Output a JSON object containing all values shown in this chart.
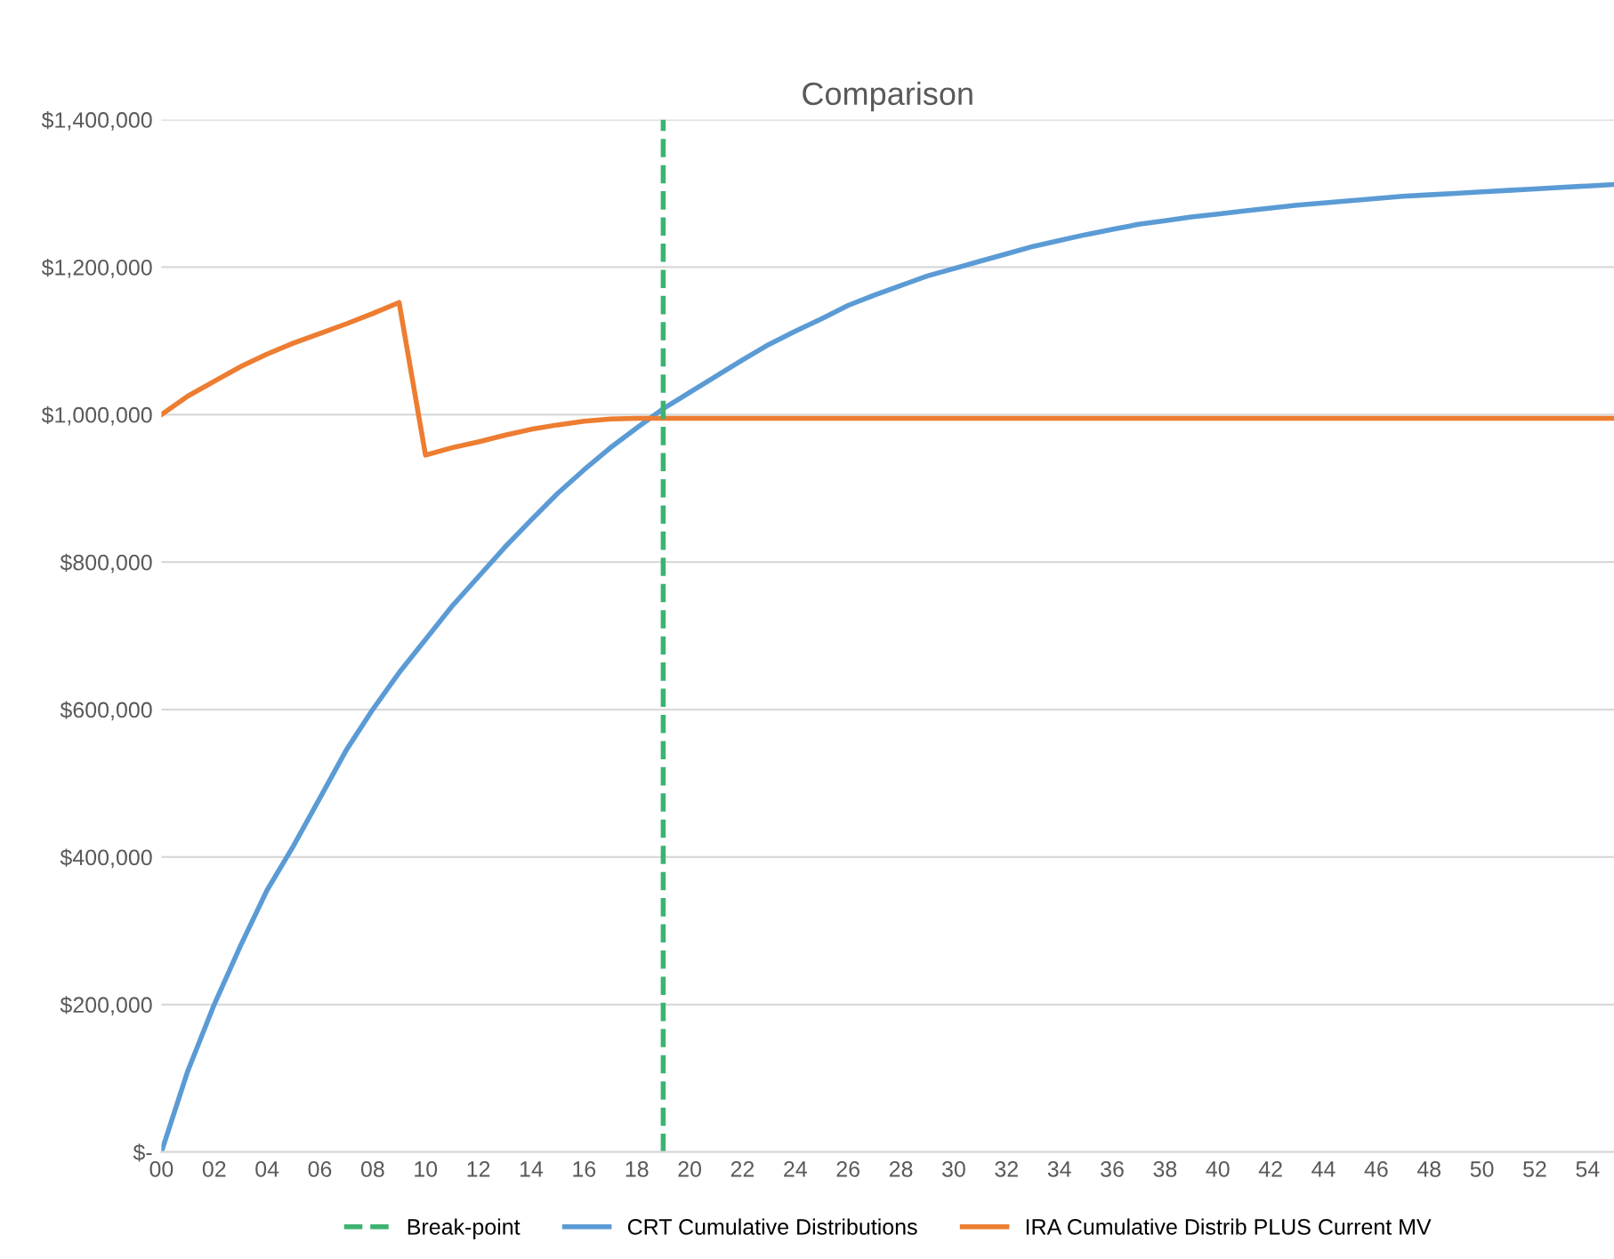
{
  "chart_data": {
    "type": "line",
    "title": "Comparison",
    "x": [
      0,
      1,
      2,
      3,
      4,
      5,
      6,
      7,
      8,
      9,
      10,
      11,
      12,
      13,
      14,
      15,
      16,
      17,
      18,
      19,
      20,
      21,
      22,
      23,
      24,
      25,
      26,
      27,
      28,
      29,
      30,
      31,
      32,
      33,
      34,
      35,
      36,
      37,
      38,
      39,
      40,
      41,
      42,
      43,
      44,
      45,
      46,
      47,
      48,
      49,
      50,
      51,
      52,
      53,
      54,
      55
    ],
    "xlim": [
      0,
      55
    ],
    "xticks": [
      {
        "value": 0,
        "label": "00"
      },
      {
        "value": 2,
        "label": "02"
      },
      {
        "value": 4,
        "label": "04"
      },
      {
        "value": 6,
        "label": "06"
      },
      {
        "value": 8,
        "label": "08"
      },
      10,
      12,
      14,
      16,
      18,
      20,
      22,
      24,
      26,
      28,
      30,
      32,
      34,
      36,
      38,
      40,
      42,
      44,
      46,
      48,
      50,
      52,
      54
    ],
    "series": [
      {
        "name": "CRT Cumulative Distributions",
        "color": "#5b9bd5",
        "values": [
          0,
          110000,
          200000,
          280000,
          355000,
          415000,
          480000,
          545000,
          600000,
          650000,
          695000,
          740000,
          780000,
          820000,
          857000,
          893000,
          925000,
          955000,
          982000,
          1008000,
          1030000,
          1052000,
          1074000,
          1095000,
          1113000,
          1130000,
          1148000,
          1162000,
          1175000,
          1188000,
          1198000,
          1208000,
          1218000,
          1228000,
          1236000,
          1244000,
          1251000,
          1258000,
          1263000,
          1268000,
          1272000,
          1276000,
          1280000,
          1284000,
          1287000,
          1290000,
          1293000,
          1296000,
          1298000,
          1300000,
          1302000,
          1304000,
          1306000,
          1308000,
          1310000,
          1312000
        ]
      },
      {
        "name": "IRA Cumulative Distrib PLUS Current MV",
        "color": "#ed7d31",
        "values": [
          1000000,
          1025000,
          1045000,
          1065000,
          1082000,
          1097000,
          1110000,
          1123000,
          1137000,
          1152000,
          945000,
          955000,
          963000,
          972000,
          980000,
          986000,
          991000,
          994000,
          995000,
          995000,
          995000,
          995000,
          995000,
          995000,
          995000,
          995000,
          995000,
          995000,
          995000,
          995000,
          995000,
          995000,
          995000,
          995000,
          995000,
          995000,
          995000,
          995000,
          995000,
          995000,
          995000,
          995000,
          995000,
          995000,
          995000,
          995000,
          995000,
          995000,
          995000,
          995000,
          995000,
          995000,
          995000,
          995000,
          995000,
          995000
        ]
      }
    ],
    "ref_lines": [
      {
        "axis": "x",
        "value": 19,
        "label": "Break-point",
        "color": "#3cb371",
        "line_style": "dashed"
      }
    ],
    "ylim": [
      0,
      1400000
    ],
    "yticks": [
      {
        "value": 0,
        "label": "$-"
      },
      {
        "value": 200000,
        "label": "$200,000"
      },
      {
        "value": 400000,
        "label": "$400,000"
      },
      {
        "value": 600000,
        "label": "$600,000"
      },
      {
        "value": 800000,
        "label": "$800,000"
      },
      {
        "value": 1000000,
        "label": "$1,000,000"
      },
      {
        "value": 1200000,
        "label": "$1,200,000"
      },
      {
        "value": 1400000,
        "label": "$1,400,000"
      }
    ],
    "grid": "y",
    "legend": "bottom",
    "marker": "none",
    "line_style": "solid"
  }
}
